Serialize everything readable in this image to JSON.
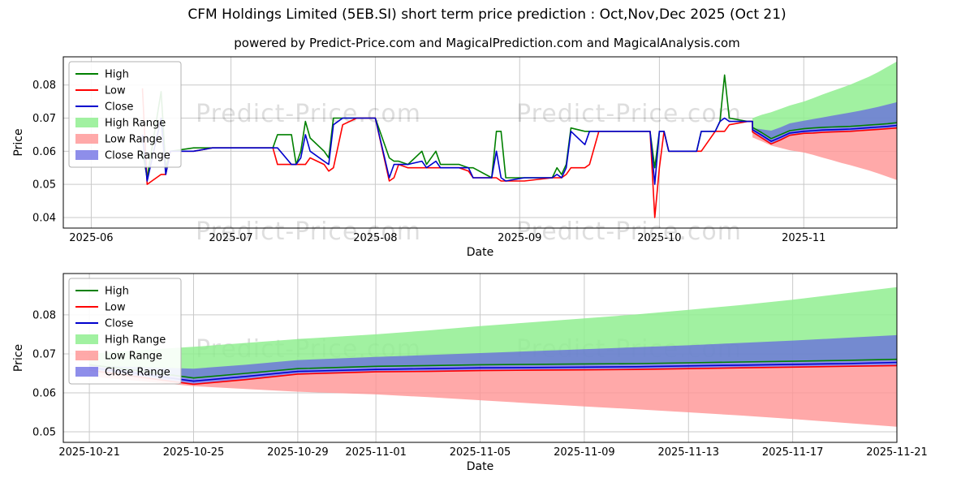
{
  "title": "CFM Holdings Limited (5EB.SI) short term price prediction : Oct,Nov,Dec 2025 (Oct 21)",
  "subtitle": "powered by Predict-Price.com and MagicalPrediction.com and MagicalAnalysis.com",
  "watermark": "Predict-Price.com",
  "colors": {
    "high": "#008000",
    "low": "#ff0000",
    "close": "#0000cd",
    "high_range": "rgba(144,238,144,0.85)",
    "low_range": "rgba(255,148,148,0.80)",
    "close_range": "rgba(98,98,226,0.72)",
    "grid": "#c9c9c9",
    "axis": "#000000"
  },
  "series": {
    "history": {
      "dates": [
        "2025-06-12",
        "2025-06-13",
        "2025-06-16",
        "2025-06-17",
        "2025-06-18",
        "2025-06-23",
        "2025-06-27",
        "2025-07-03",
        "2025-07-10",
        "2025-07-11",
        "2025-07-14",
        "2025-07-15",
        "2025-07-16",
        "2025-07-17",
        "2025-07-18",
        "2025-07-21",
        "2025-07-22",
        "2025-07-23",
        "2025-07-25",
        "2025-07-28",
        "2025-08-01",
        "2025-08-04",
        "2025-08-05",
        "2025-08-06",
        "2025-08-08",
        "2025-08-11",
        "2025-08-12",
        "2025-08-14",
        "2025-08-15",
        "2025-08-19",
        "2025-08-21",
        "2025-08-22",
        "2025-08-26",
        "2025-08-27",
        "2025-08-28",
        "2025-08-29",
        "2025-09-02",
        "2025-09-08",
        "2025-09-09",
        "2025-09-10",
        "2025-09-11",
        "2025-09-12",
        "2025-09-15",
        "2025-09-16",
        "2025-09-18",
        "2025-09-24",
        "2025-09-29",
        "2025-09-30",
        "2025-10-01",
        "2025-10-02",
        "2025-10-03",
        "2025-10-08",
        "2025-10-09",
        "2025-10-10",
        "2025-10-13",
        "2025-10-14",
        "2025-10-15",
        "2025-10-16",
        "2025-10-20",
        "2025-10-21"
      ],
      "high": [
        0.06,
        0.052,
        0.078,
        0.055,
        0.06,
        0.061,
        0.061,
        0.061,
        0.061,
        0.065,
        0.065,
        0.056,
        0.06,
        0.069,
        0.064,
        0.06,
        0.058,
        0.07,
        0.07,
        0.07,
        0.07,
        0.058,
        0.057,
        0.057,
        0.056,
        0.06,
        0.056,
        0.06,
        0.056,
        0.056,
        0.055,
        0.055,
        0.052,
        0.066,
        0.066,
        0.052,
        0.052,
        0.052,
        0.055,
        0.053,
        0.056,
        0.067,
        0.066,
        0.066,
        0.066,
        0.066,
        0.066,
        0.055,
        0.066,
        0.066,
        0.06,
        0.06,
        0.06,
        0.066,
        0.066,
        0.069,
        0.083,
        0.07,
        0.069,
        0.069
      ],
      "low": [
        0.079,
        0.05,
        0.053,
        0.053,
        0.06,
        0.06,
        0.061,
        0.061,
        0.061,
        0.056,
        0.056,
        0.056,
        0.056,
        0.056,
        0.058,
        0.056,
        0.054,
        0.055,
        0.068,
        0.07,
        0.07,
        0.051,
        0.052,
        0.056,
        0.055,
        0.055,
        0.055,
        0.055,
        0.055,
        0.055,
        0.054,
        0.052,
        0.052,
        0.052,
        0.051,
        0.051,
        0.051,
        0.052,
        0.052,
        0.052,
        0.053,
        0.055,
        0.055,
        0.056,
        0.066,
        0.066,
        0.066,
        0.04,
        0.055,
        0.066,
        0.06,
        0.06,
        0.06,
        0.06,
        0.066,
        0.066,
        0.066,
        0.068,
        0.069,
        0.069
      ],
      "close": [
        0.065,
        0.051,
        0.07,
        0.053,
        0.06,
        0.06,
        0.061,
        0.061,
        0.061,
        0.061,
        0.056,
        0.056,
        0.058,
        0.065,
        0.06,
        0.057,
        0.056,
        0.068,
        0.07,
        0.07,
        0.07,
        0.052,
        0.056,
        0.056,
        0.056,
        0.057,
        0.055,
        0.057,
        0.055,
        0.055,
        0.055,
        0.052,
        0.052,
        0.06,
        0.052,
        0.051,
        0.052,
        0.052,
        0.053,
        0.052,
        0.055,
        0.066,
        0.062,
        0.066,
        0.066,
        0.066,
        0.066,
        0.05,
        0.066,
        0.066,
        0.06,
        0.06,
        0.06,
        0.066,
        0.066,
        0.069,
        0.07,
        0.069,
        0.069,
        0.069
      ]
    },
    "forecast": {
      "dates": [
        "2025-10-21",
        "2025-10-23",
        "2025-10-25",
        "2025-10-27",
        "2025-10-29",
        "2025-11-01",
        "2025-11-03",
        "2025-11-05",
        "2025-11-07",
        "2025-11-09",
        "2025-11-11",
        "2025-11-13",
        "2025-11-15",
        "2025-11-17",
        "2025-11-19",
        "2025-11-21"
      ],
      "close": [
        0.0665,
        0.0648,
        0.063,
        0.0642,
        0.0655,
        0.066,
        0.0662,
        0.0664,
        0.0665,
        0.0666,
        0.0667,
        0.0669,
        0.0671,
        0.0673,
        0.0675,
        0.0678
      ],
      "high": [
        0.0672,
        0.0656,
        0.0638,
        0.065,
        0.0662,
        0.0668,
        0.067,
        0.0672,
        0.0673,
        0.0674,
        0.0675,
        0.0677,
        0.0679,
        0.0681,
        0.0683,
        0.0686
      ],
      "low": [
        0.0658,
        0.064,
        0.0622,
        0.0634,
        0.0648,
        0.0654,
        0.0655,
        0.0657,
        0.0658,
        0.0659,
        0.066,
        0.0662,
        0.0664,
        0.0666,
        0.0668,
        0.067
      ],
      "high_range_upper": [
        0.07,
        0.071,
        0.0718,
        0.0728,
        0.0738,
        0.075,
        0.076,
        0.0771,
        0.0781,
        0.0791,
        0.0801,
        0.0813,
        0.0825,
        0.0839,
        0.0855,
        0.0871
      ],
      "low_range_lower": [
        0.0642,
        0.063,
        0.0617,
        0.061,
        0.0603,
        0.0596,
        0.0589,
        0.0581,
        0.0573,
        0.0565,
        0.0558,
        0.055,
        0.0542,
        0.0533,
        0.0523,
        0.0513
      ],
      "close_range_upper": [
        0.067,
        0.0666,
        0.0662,
        0.0672,
        0.0684,
        0.0692,
        0.0697,
        0.0702,
        0.0707,
        0.0712,
        0.0717,
        0.0722,
        0.0728,
        0.0734,
        0.0741,
        0.0748
      ]
    }
  },
  "chart_data": [
    {
      "type": "line",
      "title": "",
      "xlabel": "Date",
      "ylabel": "Price",
      "xlim": [
        "2025-05-26",
        "2025-11-21"
      ],
      "ylim": [
        0.0368,
        0.0885
      ],
      "grid": true,
      "legend_position": "upper-left",
      "x_ticks": [
        {
          "date": "2025-06-01",
          "label": "2025-06"
        },
        {
          "date": "2025-07-01",
          "label": "2025-07"
        },
        {
          "date": "2025-08-01",
          "label": "2025-08"
        },
        {
          "date": "2025-09-01",
          "label": "2025-09"
        },
        {
          "date": "2025-10-01",
          "label": "2025-10"
        },
        {
          "date": "2025-11-01",
          "label": "2025-11"
        }
      ],
      "y_ticks": [
        {
          "value": 0.04,
          "label": "0.04"
        },
        {
          "value": 0.05,
          "label": "0.05"
        },
        {
          "value": 0.06,
          "label": "0.06"
        },
        {
          "value": 0.07,
          "label": "0.07"
        },
        {
          "value": 0.08,
          "label": "0.08"
        }
      ],
      "bands": [
        {
          "name": "High Range",
          "src": "forecast",
          "upper": "high_range_upper",
          "lower": "high",
          "color": "rgba(144,238,144,0.85)"
        },
        {
          "name": "Low Range",
          "src": "forecast",
          "upper": "low",
          "lower": "low_range_lower",
          "color": "rgba(255,148,148,0.80)"
        },
        {
          "name": "Close Range",
          "src": "forecast",
          "upper": "close_range_upper",
          "lower": "low",
          "color": "rgba(98,98,226,0.72)"
        }
      ],
      "lines": [
        {
          "name": "High",
          "src": [
            "history",
            "forecast"
          ],
          "field": "high",
          "color": "#008000"
        },
        {
          "name": "Low",
          "src": [
            "history",
            "forecast"
          ],
          "field": "low",
          "color": "#ff0000"
        },
        {
          "name": "Close",
          "src": [
            "history",
            "forecast"
          ],
          "field": "close",
          "color": "#0000cd"
        }
      ],
      "legend": [
        {
          "label": "High",
          "color": "#008000",
          "type": "line"
        },
        {
          "label": "Low",
          "color": "#ff0000",
          "type": "line"
        },
        {
          "label": "Close",
          "color": "#0000cd",
          "type": "line"
        },
        {
          "label": "High Range",
          "color": "rgba(144,238,144,0.85)",
          "type": "patch"
        },
        {
          "label": "Low Range",
          "color": "rgba(255,148,148,0.80)",
          "type": "patch"
        },
        {
          "label": "Close Range",
          "color": "rgba(98,98,226,0.72)",
          "type": "patch"
        }
      ]
    },
    {
      "type": "line",
      "title": "",
      "xlabel": "Date",
      "ylabel": "Price",
      "xlim": [
        "2025-10-20",
        "2025-11-21"
      ],
      "ylim": [
        0.0473,
        0.0906
      ],
      "grid": true,
      "legend_position": "upper-left",
      "x_ticks": [
        {
          "date": "2025-10-21",
          "label": "2025-10-21"
        },
        {
          "date": "2025-10-25",
          "label": "2025-10-25"
        },
        {
          "date": "2025-10-29",
          "label": "2025-10-29"
        },
        {
          "date": "2025-11-01",
          "label": "2025-11-01"
        },
        {
          "date": "2025-11-05",
          "label": "2025-11-05"
        },
        {
          "date": "2025-11-09",
          "label": "2025-11-09"
        },
        {
          "date": "2025-11-13",
          "label": "2025-11-13"
        },
        {
          "date": "2025-11-17",
          "label": "2025-11-17"
        },
        {
          "date": "2025-11-21",
          "label": "2025-11-21"
        }
      ],
      "y_ticks": [
        {
          "value": 0.05,
          "label": "0.05"
        },
        {
          "value": 0.06,
          "label": "0.06"
        },
        {
          "value": 0.07,
          "label": "0.07"
        },
        {
          "value": 0.08,
          "label": "0.08"
        }
      ],
      "bands": [
        {
          "name": "High Range",
          "src": "forecast",
          "upper": "high_range_upper",
          "lower": "high",
          "color": "rgba(144,238,144,0.85)"
        },
        {
          "name": "Low Range",
          "src": "forecast",
          "upper": "low",
          "lower": "low_range_lower",
          "color": "rgba(255,148,148,0.80)"
        },
        {
          "name": "Close Range",
          "src": "forecast",
          "upper": "close_range_upper",
          "lower": "low",
          "color": "rgba(98,98,226,0.72)"
        }
      ],
      "lines": [
        {
          "name": "High",
          "src": "forecast",
          "field": "high",
          "color": "#008000"
        },
        {
          "name": "Low",
          "src": "forecast",
          "field": "low",
          "color": "#ff0000"
        },
        {
          "name": "Close",
          "src": "forecast",
          "field": "close",
          "color": "#0000cd"
        }
      ],
      "legend": [
        {
          "label": "High",
          "color": "#008000",
          "type": "line"
        },
        {
          "label": "Low",
          "color": "#ff0000",
          "type": "line"
        },
        {
          "label": "Close",
          "color": "#0000cd",
          "type": "line"
        },
        {
          "label": "High Range",
          "color": "rgba(144,238,144,0.85)",
          "type": "patch"
        },
        {
          "label": "Low Range",
          "color": "rgba(255,148,148,0.80)",
          "type": "patch"
        },
        {
          "label": "Close Range",
          "color": "rgba(98,98,226,0.72)",
          "type": "patch"
        }
      ]
    }
  ]
}
